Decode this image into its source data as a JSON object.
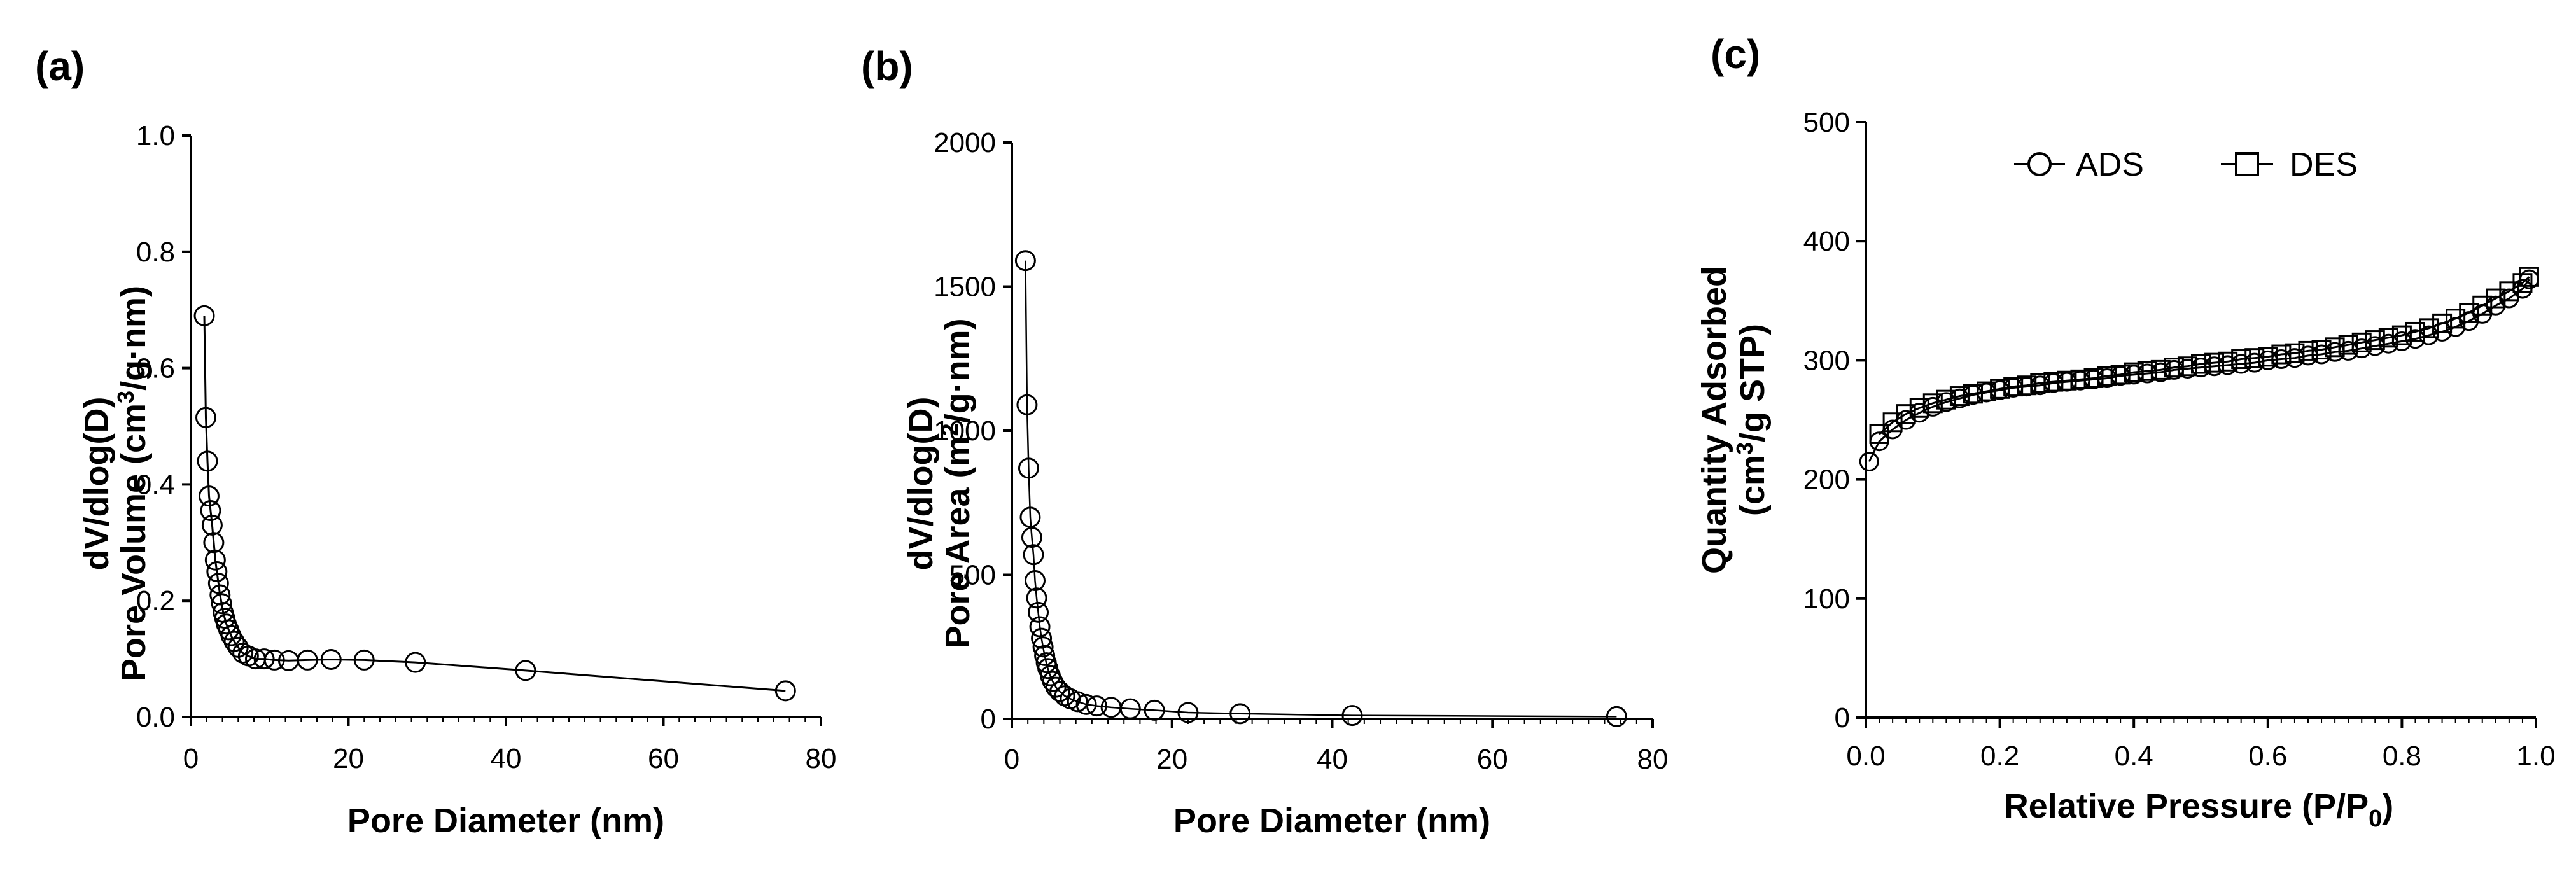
{
  "chart_data": [
    {
      "panel": "(a)",
      "type": "line",
      "xlabel": "Pore Diameter (nm)",
      "ylabel_line1": "dV/dlog(D)",
      "ylabel_line2_pre": "Pore Volume (cm",
      "ylabel_line2_sup": "3",
      "ylabel_line2_post": "/g·nm)",
      "xlim": [
        0,
        80
      ],
      "ylim": [
        0,
        1.0
      ],
      "xticks": [
        0,
        20,
        40,
        60,
        80
      ],
      "yticks": [
        0.0,
        0.2,
        0.4,
        0.6,
        0.8,
        1.0
      ],
      "xtick_labels": [
        "0",
        "20",
        "40",
        "60",
        "80"
      ],
      "ytick_labels": [
        "0.0",
        "0.2",
        "0.4",
        "0.6",
        "0.8",
        "1.0"
      ],
      "marker": "circle",
      "x": [
        1.7,
        1.9,
        2.1,
        2.3,
        2.5,
        2.7,
        2.9,
        3.1,
        3.3,
        3.5,
        3.7,
        3.9,
        4.1,
        4.3,
        4.5,
        4.8,
        5.1,
        5.5,
        6.0,
        6.6,
        7.3,
        8.2,
        9.3,
        10.6,
        12.4,
        14.8,
        17.8,
        22.0,
        28.5,
        42.5,
        75.5
      ],
      "y": [
        0.69,
        0.515,
        0.44,
        0.38,
        0.355,
        0.33,
        0.3,
        0.27,
        0.25,
        0.23,
        0.21,
        0.195,
        0.18,
        0.17,
        0.16,
        0.15,
        0.14,
        0.13,
        0.12,
        0.11,
        0.105,
        0.1,
        0.1,
        0.098,
        0.097,
        0.098,
        0.099,
        0.098,
        0.094,
        0.08,
        0.045
      ],
      "grid": false
    },
    {
      "panel": "(b)",
      "type": "line",
      "xlabel": "Pore Diameter (nm)",
      "ylabel_line1": "dV/dlog(D)",
      "ylabel_line2_pre": "Pore Area (m",
      "ylabel_line2_sup": "2",
      "ylabel_line2_post": "/g·nm)",
      "xlim": [
        0,
        80
      ],
      "ylim": [
        0,
        2000
      ],
      "xticks": [
        0,
        20,
        40,
        60,
        80
      ],
      "yticks": [
        0,
        500,
        1000,
        1500,
        2000
      ],
      "xtick_labels": [
        "0",
        "20",
        "40",
        "60",
        "80"
      ],
      "ytick_labels": [
        "0",
        "500",
        "1000",
        "1500",
        "2000"
      ],
      "marker": "circle",
      "x": [
        1.7,
        1.9,
        2.1,
        2.3,
        2.5,
        2.7,
        2.9,
        3.1,
        3.3,
        3.5,
        3.7,
        3.9,
        4.1,
        4.3,
        4.5,
        4.8,
        5.1,
        5.5,
        6.0,
        6.6,
        7.3,
        8.2,
        9.3,
        10.6,
        12.4,
        14.8,
        17.8,
        22.0,
        28.5,
        42.5,
        75.5
      ],
      "y": [
        1590,
        1090,
        870,
        700,
        630,
        570,
        480,
        420,
        370,
        320,
        280,
        250,
        220,
        195,
        175,
        150,
        130,
        110,
        95,
        80,
        70,
        60,
        50,
        45,
        40,
        35,
        30,
        22,
        18,
        12,
        8
      ],
      "grid": false
    },
    {
      "panel": "(c)",
      "type": "scatter",
      "xlabel_pre": "Relative Pressure (P/P",
      "xlabel_sub": "0",
      "xlabel_post": ")",
      "ylabel_line1": "Quantity Adsorbed",
      "ylabel_line2_pre": "(cm",
      "ylabel_line2_sup": "3",
      "ylabel_line2_post": "/g STP)",
      "xlim": [
        0.0,
        1.0
      ],
      "ylim": [
        0,
        500
      ],
      "xticks": [
        0.0,
        0.2,
        0.4,
        0.6,
        0.8,
        1.0
      ],
      "yticks": [
        0,
        100,
        200,
        300,
        400,
        500
      ],
      "xtick_labels": [
        "0.0",
        "0.2",
        "0.4",
        "0.6",
        "0.8",
        "1.0"
      ],
      "ytick_labels": [
        "0",
        "100",
        "200",
        "300",
        "400",
        "500"
      ],
      "legend_position": "top-center",
      "grid": false,
      "series": [
        {
          "name": "ADS",
          "marker": "circle",
          "x": [
            0.005,
            0.02,
            0.04,
            0.06,
            0.08,
            0.1,
            0.12,
            0.14,
            0.16,
            0.18,
            0.2,
            0.22,
            0.24,
            0.26,
            0.28,
            0.3,
            0.32,
            0.34,
            0.36,
            0.38,
            0.4,
            0.42,
            0.44,
            0.46,
            0.48,
            0.5,
            0.52,
            0.54,
            0.56,
            0.58,
            0.6,
            0.62,
            0.64,
            0.66,
            0.68,
            0.7,
            0.72,
            0.74,
            0.76,
            0.78,
            0.8,
            0.82,
            0.84,
            0.86,
            0.88,
            0.9,
            0.92,
            0.94,
            0.96,
            0.98,
            0.99
          ],
          "y": [
            215,
            232,
            242,
            250,
            256,
            261,
            265,
            268,
            271,
            273,
            275,
            277,
            278,
            279,
            281,
            282,
            283,
            284,
            285,
            287,
            288,
            289,
            290,
            292,
            293,
            294,
            295,
            296,
            297,
            298,
            300,
            301,
            302,
            304,
            305,
            307,
            308,
            310,
            312,
            314,
            316,
            318,
            321,
            324,
            328,
            333,
            339,
            346,
            352,
            360,
            368
          ]
        },
        {
          "name": "DES",
          "marker": "square",
          "x": [
            0.02,
            0.04,
            0.06,
            0.08,
            0.1,
            0.12,
            0.14,
            0.16,
            0.18,
            0.2,
            0.22,
            0.24,
            0.26,
            0.28,
            0.3,
            0.32,
            0.34,
            0.36,
            0.38,
            0.4,
            0.42,
            0.44,
            0.46,
            0.48,
            0.5,
            0.52,
            0.54,
            0.56,
            0.58,
            0.6,
            0.62,
            0.64,
            0.66,
            0.68,
            0.7,
            0.72,
            0.74,
            0.76,
            0.78,
            0.8,
            0.82,
            0.84,
            0.86,
            0.88,
            0.9,
            0.92,
            0.94,
            0.96,
            0.98,
            0.99
          ],
          "y": [
            238,
            248,
            255,
            260,
            264,
            267,
            270,
            272,
            274,
            276,
            278,
            279,
            281,
            282,
            283,
            284,
            285,
            287,
            288,
            290,
            291,
            292,
            294,
            295,
            297,
            298,
            299,
            301,
            302,
            303,
            305,
            306,
            308,
            309,
            311,
            313,
            315,
            317,
            319,
            321,
            324,
            327,
            331,
            335,
            340,
            346,
            352,
            358,
            365,
            370
          ]
        }
      ]
    }
  ]
}
